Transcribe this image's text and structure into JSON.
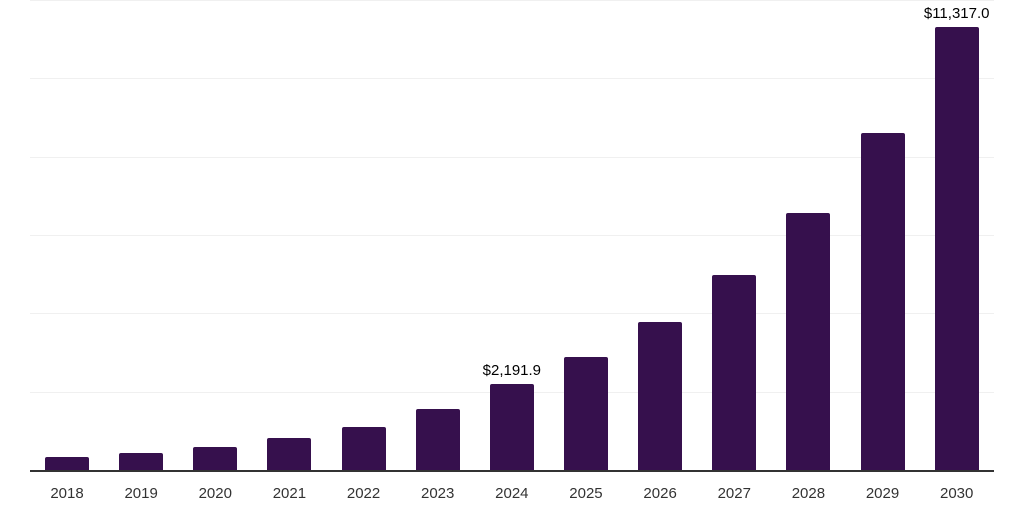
{
  "chart_data": {
    "type": "bar",
    "title": "",
    "xlabel": "",
    "ylabel": "",
    "categories": [
      "2018",
      "2019",
      "2020",
      "2021",
      "2022",
      "2023",
      "2024",
      "2025",
      "2026",
      "2027",
      "2028",
      "2029",
      "2030"
    ],
    "values": [
      320,
      440,
      585,
      815,
      1110,
      1570,
      2191.9,
      2880,
      3790,
      4980,
      6550,
      8610,
      11317.0
    ],
    "ylim": [
      0,
      12000
    ],
    "gridline_values": [
      2000,
      4000,
      6000,
      8000,
      10000,
      12000
    ],
    "grid": true,
    "legend_position": "none",
    "data_labels": [
      {
        "category": "2024",
        "text": "$2,191.9"
      },
      {
        "category": "2030",
        "text": "$11,317.0"
      }
    ],
    "colors": {
      "bar_fill": "#36104D",
      "axis_line": "#333333",
      "gridline": "#f0f0f0",
      "tick_label": "#333333",
      "data_label": "#000000",
      "background": "#ffffff"
    }
  }
}
